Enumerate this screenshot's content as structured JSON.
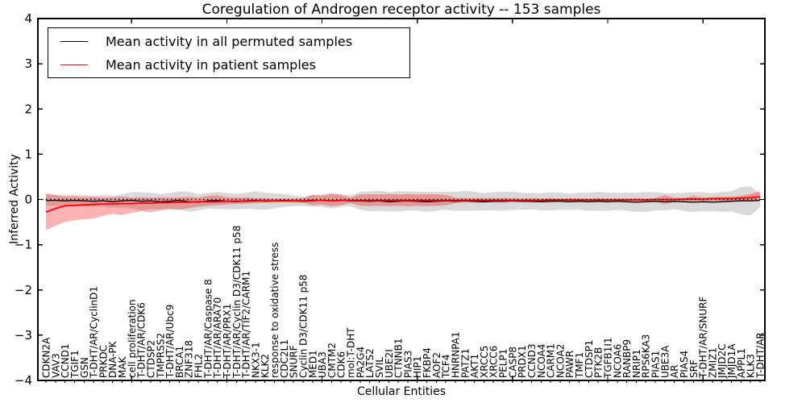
{
  "chart_data": {
    "type": "line",
    "title": "Coregulation of Androgen receptor activity -- 153 samples",
    "xlabel": "Cellular Entities",
    "ylabel": "Inferred Activity",
    "ylim": [
      -4,
      4
    ],
    "ytick_labels": [
      "4",
      "3",
      "2",
      "1",
      "0",
      "−1",
      "−2",
      "−3",
      "−4"
    ],
    "grid": false,
    "legend_position": "upper left",
    "zero_line_style": "dotted",
    "frame_color": "#000000",
    "background_color": "#ffffff",
    "categories": [
      "CDKN2A",
      "VAV3",
      "CCND1",
      "TGIF1",
      "GSN",
      "T-DHT/AR/CyclinD1",
      "PRKDC",
      "DNA-PK",
      "MAK",
      "cell proliferation",
      "T-DHT/AR/CDK6",
      "CTDSP2",
      "TMPRSS2",
      "T-DHT/AR/Ubc9",
      "BRCA1",
      "ZNF318",
      "FHL2",
      "T-DHT/AR/Caspase 8",
      "T-DHT/AR/ARA70",
      "T-DHT/AR/PRX1",
      "T-DHT/AR/Cyclin D3/CDK11 p58",
      "T-DHT/AR/TIF2/CARM1",
      "NKX3-1",
      "KLK2",
      "response to oxidative stress",
      "CDC2L1",
      "SNURF",
      "Cyclin D3/CDK11 p58",
      "MED1",
      "UBA3",
      "CMTM2",
      "CDK6",
      "mol:T-DHT",
      "PA2G4",
      "LATS2",
      "SVIL",
      "UBE2I",
      "CTNNB1",
      "PIAS3",
      "HIP1",
      "FKBP4",
      "AOF2",
      "TCF4",
      "HNRNPA1",
      "PATZ1",
      "AKT1",
      "XRCC5",
      "XRCC6",
      "PELP1",
      "CASP8",
      "PRDX1",
      "CCND3",
      "NCOA4",
      "CARM1",
      "NCOA2",
      "PAWR",
      "TMF1",
      "CTDSP1",
      "PTK2B",
      "TGFB1I1",
      "NCOA6",
      "RANBP9",
      "NRIP1",
      "RPS6KA3",
      "PIAS1",
      "UBE3A",
      "AR",
      "PIAS4",
      "SRF",
      "T-DHT/AR/SNURF",
      "ZMIZ1",
      "JMJD2C",
      "JMJD1A",
      "APPL1",
      "KLK3",
      "T-DHT/AR"
    ],
    "series": [
      {
        "name": "Mean activity in all permuted samples",
        "color": "#000000",
        "line_width": 1.3,
        "values": [
          -0.02,
          -0.02,
          -0.03,
          -0.02,
          -0.03,
          -0.04,
          -0.03,
          -0.05,
          -0.03,
          -0.02,
          -0.04,
          -0.03,
          -0.05,
          -0.04,
          -0.02,
          -0.05,
          -0.06,
          -0.03,
          -0.02,
          -0.04,
          -0.05,
          -0.03,
          -0.02,
          -0.04,
          -0.03,
          -0.02,
          -0.03,
          -0.04,
          -0.03,
          -0.02,
          -0.03,
          -0.02,
          -0.03,
          -0.03,
          -0.04,
          -0.03,
          -0.05,
          -0.04,
          -0.03,
          -0.04,
          -0.05,
          -0.04,
          -0.03,
          -0.04,
          -0.03,
          -0.04,
          -0.05,
          -0.04,
          -0.04,
          -0.03,
          -0.04,
          -0.04,
          -0.05,
          -0.04,
          -0.04,
          -0.05,
          -0.04,
          -0.05,
          -0.04,
          -0.05,
          -0.04,
          -0.05,
          -0.06,
          -0.05,
          -0.04,
          -0.05,
          -0.04,
          -0.05,
          -0.06,
          -0.05,
          -0.06,
          -0.05,
          -0.04,
          -0.03,
          -0.03,
          -0.02
        ]
      },
      {
        "name": "Mean activity in patient samples",
        "color": "#ff0000",
        "line_width": 1.8,
        "values": [
          -0.28,
          -0.2,
          -0.14,
          -0.13,
          -0.12,
          -0.11,
          -0.1,
          -0.1,
          -0.09,
          -0.09,
          -0.08,
          -0.08,
          -0.07,
          -0.07,
          -0.06,
          -0.06,
          -0.05,
          -0.05,
          -0.05,
          -0.04,
          -0.04,
          -0.04,
          -0.03,
          -0.03,
          -0.03,
          -0.03,
          -0.03,
          -0.03,
          -0.02,
          -0.02,
          -0.03,
          -0.02,
          -0.02,
          -0.02,
          -0.02,
          -0.02,
          -0.02,
          -0.02,
          -0.02,
          -0.02,
          -0.02,
          -0.02,
          -0.02,
          -0.02,
          -0.02,
          -0.02,
          -0.02,
          -0.02,
          -0.02,
          -0.02,
          -0.02,
          -0.02,
          -0.02,
          -0.01,
          -0.01,
          -0.01,
          -0.01,
          -0.01,
          -0.01,
          -0.01,
          -0.01,
          -0.01,
          -0.01,
          -0.01,
          0.0,
          0.0,
          0.0,
          0.01,
          0.01,
          0.01,
          0.02,
          0.02,
          0.02,
          0.03,
          0.04,
          0.06
        ]
      }
    ],
    "bands": [
      {
        "name": "permuted samples std band",
        "color": "rgba(0,0,0,0.15)",
        "center_series": 0,
        "half_widths": [
          0.12,
          0.12,
          0.13,
          0.12,
          0.13,
          0.12,
          0.13,
          0.13,
          0.15,
          0.18,
          0.2,
          0.18,
          0.17,
          0.18,
          0.2,
          0.22,
          0.18,
          0.17,
          0.19,
          0.18,
          0.17,
          0.18,
          0.2,
          0.19,
          0.17,
          0.14,
          0.12,
          0.1,
          0.13,
          0.14,
          0.17,
          0.14,
          0.12,
          0.2,
          0.22,
          0.22,
          0.21,
          0.22,
          0.21,
          0.21,
          0.22,
          0.21,
          0.2,
          0.21,
          0.22,
          0.21,
          0.19,
          0.2,
          0.21,
          0.2,
          0.19,
          0.18,
          0.19,
          0.2,
          0.19,
          0.18,
          0.19,
          0.2,
          0.21,
          0.2,
          0.19,
          0.2,
          0.21,
          0.22,
          0.2,
          0.19,
          0.18,
          0.2,
          0.22,
          0.21,
          0.2,
          0.22,
          0.22,
          0.3,
          0.32,
          0.15
        ]
      },
      {
        "name": "patient samples std band",
        "color": "rgba(255,0,0,0.30)",
        "upper": [
          0.14,
          0.1,
          0.06,
          0.07,
          0.05,
          0.06,
          0.04,
          0.05,
          0.06,
          0.04,
          0.05,
          0.04,
          0.05,
          0.04,
          0.05,
          0.06,
          0.04,
          0.08,
          0.09,
          0.05,
          0.04,
          0.05,
          0.03,
          0.03,
          0.02,
          0.02,
          0.02,
          0.03,
          0.1,
          0.08,
          0.12,
          0.1,
          0.04,
          0.11,
          0.12,
          0.11,
          0.12,
          0.11,
          0.12,
          0.11,
          0.12,
          0.11,
          0.1,
          0.04,
          0.03,
          0.03,
          0.03,
          0.03,
          0.03,
          0.03,
          0.02,
          0.03,
          0.02,
          0.03,
          0.02,
          0.03,
          0.02,
          0.02,
          0.03,
          0.02,
          0.03,
          0.02,
          0.03,
          0.02,
          0.03,
          0.09,
          0.04,
          0.03,
          0.08,
          0.04,
          0.05,
          0.06,
          0.06,
          0.08,
          0.12,
          0.18
        ],
        "lower": [
          -0.68,
          -0.58,
          -0.5,
          -0.46,
          -0.44,
          -0.42,
          -0.36,
          -0.32,
          -0.34,
          -0.3,
          -0.26,
          -0.28,
          -0.24,
          -0.21,
          -0.23,
          -0.19,
          -0.16,
          -0.14,
          -0.13,
          -0.11,
          -0.1,
          -0.09,
          -0.08,
          -0.07,
          -0.07,
          -0.06,
          -0.07,
          -0.07,
          -0.13,
          -0.11,
          -0.15,
          -0.13,
          -0.08,
          -0.14,
          -0.15,
          -0.14,
          -0.15,
          -0.14,
          -0.15,
          -0.14,
          -0.15,
          -0.14,
          -0.13,
          -0.08,
          -0.07,
          -0.07,
          -0.07,
          -0.06,
          -0.07,
          -0.06,
          -0.06,
          -0.07,
          -0.06,
          -0.06,
          -0.05,
          -0.06,
          -0.05,
          -0.06,
          -0.05,
          -0.06,
          -0.05,
          -0.05,
          -0.06,
          -0.05,
          -0.05,
          -0.1,
          -0.06,
          -0.05,
          -0.07,
          -0.05,
          -0.05,
          -0.04,
          -0.04,
          -0.03,
          -0.03,
          -0.02
        ]
      }
    ]
  }
}
